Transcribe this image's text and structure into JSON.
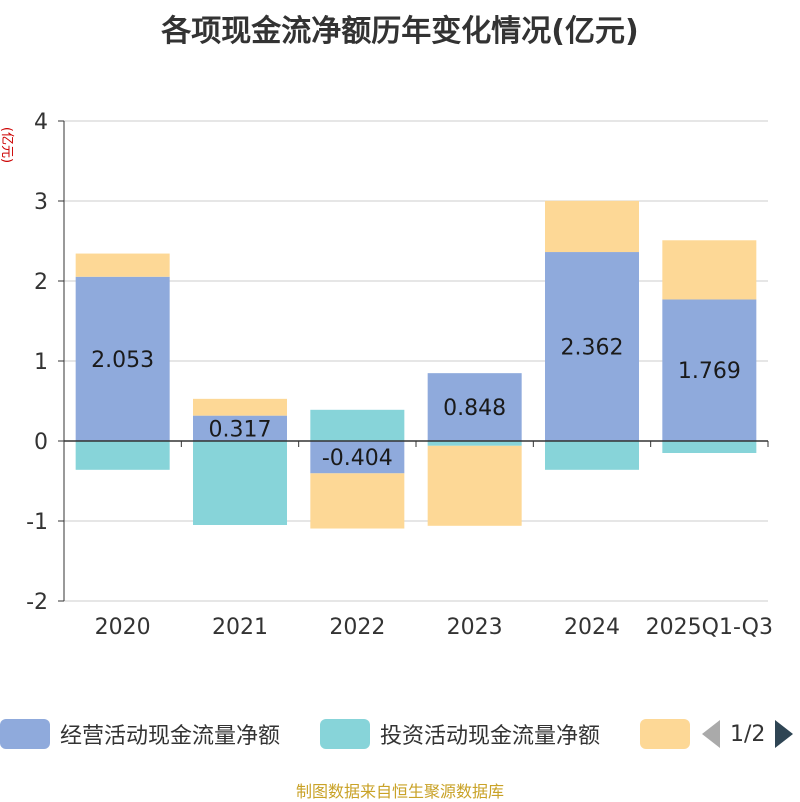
{
  "chart_data": {
    "type": "bar",
    "stacked": true,
    "title": "各项现金流净额历年变化情况(亿元)",
    "ylabel": "(亿元)",
    "xlabel": "",
    "categories": [
      "2020",
      "2021",
      "2022",
      "2023",
      "2024",
      "2025Q1-Q3"
    ],
    "ylim": [
      -2,
      4
    ],
    "yticks": [
      -2,
      -1,
      0,
      1,
      2,
      3,
      4
    ],
    "grid": true,
    "series": [
      {
        "name": "经营活动现金流量净额",
        "color": "#8faadc",
        "values": [
          2.053,
          0.317,
          -0.404,
          0.848,
          2.362,
          1.769
        ],
        "show_labels": true
      },
      {
        "name": "投资活动现金流量净额",
        "color": "#87d4d9",
        "values": [
          -0.36,
          -1.05,
          0.39,
          -0.06,
          -0.36,
          -0.15
        ],
        "show_labels": false
      },
      {
        "name": "",
        "color": "#fdd896",
        "values": [
          0.29,
          0.21,
          -0.69,
          -1.0,
          0.64,
          0.74
        ],
        "show_labels": false
      }
    ],
    "legend_position": "bottom"
  },
  "legend": {
    "items": [
      {
        "label": "经营活动现金流量净额",
        "color": "#8faadc"
      },
      {
        "label": "投资活动现金流量净额",
        "color": "#87d4d9"
      },
      {
        "label": "",
        "color": "#fdd896"
      }
    ],
    "page_text": "1/2"
  },
  "source_note": "制图数据来自恒生聚源数据库"
}
